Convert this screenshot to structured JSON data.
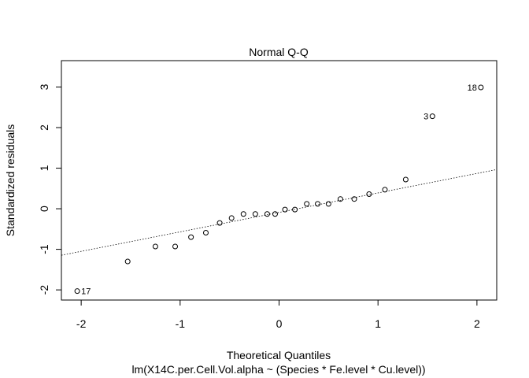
{
  "chart_data": {
    "type": "scatter",
    "title": "Normal Q-Q",
    "xlabel": "Theoretical Quantiles",
    "ylabel": "Standardized residuals",
    "subtitle": "lm(X14C.per.Cell.Vol.alpha ~ (Species * Fe.level * Cu.level))",
    "xlim": [
      -2.2,
      2.2
    ],
    "ylim": [
      -2.25,
      3.65
    ],
    "xticks": [
      -2,
      -1,
      0,
      1,
      2
    ],
    "yticks": [
      -2,
      -1,
      0,
      1,
      2,
      3
    ],
    "xtick_labels": [
      "-2",
      "-1",
      "0",
      "1",
      "2"
    ],
    "ytick_labels": [
      "-2",
      "-1",
      "0",
      "1",
      "2",
      "3"
    ],
    "grid": false,
    "reference_line": {
      "slope": 0.48,
      "intercept": -0.09,
      "style": "dotted"
    },
    "points": [
      {
        "x": -2.04,
        "y": -2.03,
        "label": "17"
      },
      {
        "x": -1.53,
        "y": -1.3
      },
      {
        "x": -1.25,
        "y": -0.93
      },
      {
        "x": -1.05,
        "y": -0.93
      },
      {
        "x": -0.89,
        "y": -0.7
      },
      {
        "x": -0.74,
        "y": -0.59
      },
      {
        "x": -0.6,
        "y": -0.35
      },
      {
        "x": -0.48,
        "y": -0.23
      },
      {
        "x": -0.36,
        "y": -0.13
      },
      {
        "x": -0.24,
        "y": -0.13
      },
      {
        "x": -0.12,
        "y": -0.13
      },
      {
        "x": -0.04,
        "y": -0.13
      },
      {
        "x": 0.06,
        "y": -0.02
      },
      {
        "x": 0.16,
        "y": -0.02
      },
      {
        "x": 0.28,
        "y": 0.12
      },
      {
        "x": 0.39,
        "y": 0.12
      },
      {
        "x": 0.5,
        "y": 0.12
      },
      {
        "x": 0.62,
        "y": 0.24
      },
      {
        "x": 0.76,
        "y": 0.24
      },
      {
        "x": 0.91,
        "y": 0.36
      },
      {
        "x": 1.07,
        "y": 0.47
      },
      {
        "x": 1.28,
        "y": 0.72
      },
      {
        "x": 1.55,
        "y": 2.28,
        "label": "3"
      },
      {
        "x": 2.04,
        "y": 2.99,
        "label": "18"
      }
    ]
  }
}
